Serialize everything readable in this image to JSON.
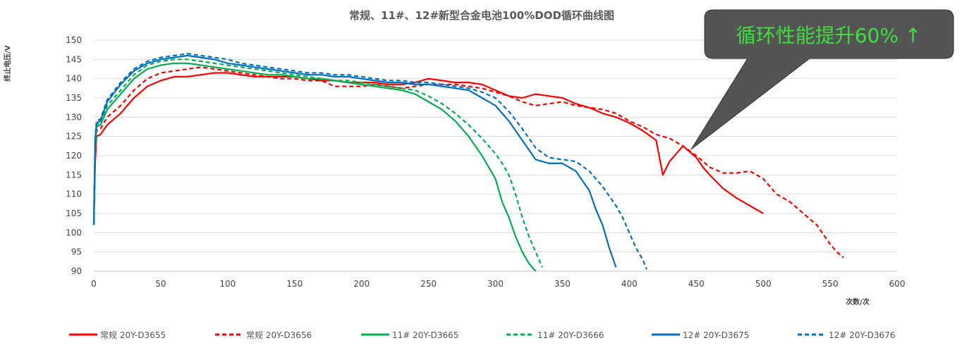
{
  "chart_data": {
    "type": "line",
    "title": "常规、11#、12#新型合金电池100%DOD循环曲线图",
    "xlabel": "次数/次",
    "ylabel": "终止电压/V",
    "xlim": [
      0,
      600
    ],
    "ylim": [
      90,
      150
    ],
    "xticks": [
      0,
      50,
      100,
      150,
      200,
      250,
      300,
      350,
      400,
      450,
      500,
      550,
      600
    ],
    "yticks": [
      90,
      95,
      100,
      105,
      110,
      115,
      120,
      125,
      130,
      135,
      140,
      145,
      150
    ],
    "grid": "horizontal",
    "legend_position": "bottom",
    "annotation": "循环性能提升60% ↑",
    "series": [
      {
        "name": "常规 20Y-D3655",
        "color": "#ff0000",
        "dash": "solid",
        "x": [
          0,
          1,
          2,
          5,
          10,
          20,
          30,
          40,
          50,
          60,
          70,
          80,
          90,
          100,
          110,
          120,
          130,
          140,
          150,
          160,
          170,
          180,
          190,
          200,
          210,
          220,
          230,
          240,
          250,
          260,
          270,
          280,
          290,
          300,
          310,
          320,
          330,
          340,
          350,
          360,
          370,
          380,
          390,
          400,
          410,
          420,
          425,
          430,
          440,
          450,
          455,
          460,
          470,
          480,
          490,
          500
        ],
        "y": [
          102,
          118,
          125,
          125.5,
          128,
          131,
          135,
          138,
          139.5,
          140.5,
          140.5,
          141,
          141.5,
          141.5,
          141,
          140.5,
          140.5,
          140.5,
          140.5,
          140,
          139.5,
          139.5,
          139,
          139,
          139,
          138.5,
          138.5,
          139,
          140,
          139.5,
          139,
          139,
          138.5,
          137,
          135.5,
          135,
          136,
          135.5,
          135,
          133.5,
          132.5,
          131,
          130,
          128.5,
          126.5,
          124,
          115,
          118.5,
          122.5,
          119.5,
          117,
          115,
          111.5,
          109,
          107,
          105
        ]
      },
      {
        "name": "常规 20Y-D3656",
        "color": "#ff0000",
        "dash": "dashed",
        "x": [
          0,
          1,
          2,
          5,
          10,
          20,
          30,
          40,
          50,
          60,
          70,
          80,
          90,
          100,
          110,
          120,
          130,
          140,
          150,
          160,
          170,
          180,
          190,
          200,
          210,
          220,
          230,
          240,
          250,
          260,
          270,
          280,
          290,
          300,
          310,
          320,
          330,
          340,
          350,
          360,
          370,
          380,
          390,
          400,
          410,
          420,
          430,
          440,
          450,
          460,
          470,
          480,
          490,
          500,
          510,
          520,
          530,
          540,
          550,
          555,
          560
        ],
        "y": [
          102,
          120,
          126.5,
          127,
          130,
          133,
          137,
          140,
          141.5,
          142,
          142.5,
          143,
          142.5,
          142,
          141.5,
          141,
          140.5,
          140,
          140,
          139.5,
          139.5,
          138,
          138,
          138,
          138.5,
          138,
          137.5,
          138,
          138.5,
          138.5,
          138.5,
          138,
          137.5,
          136.5,
          135.5,
          134,
          133,
          133.5,
          134,
          133,
          132.5,
          132,
          131,
          129,
          127.5,
          125.5,
          124.5,
          122.5,
          120,
          117,
          115.5,
          115.5,
          116,
          114,
          110,
          108,
          105,
          102,
          97,
          95,
          93.5
        ]
      },
      {
        "name": "11# 20Y-D3665",
        "color": "#00b050",
        "dash": "solid",
        "x": [
          0,
          1,
          2,
          5,
          10,
          20,
          30,
          40,
          50,
          60,
          70,
          80,
          90,
          100,
          110,
          120,
          130,
          140,
          150,
          160,
          170,
          180,
          190,
          200,
          210,
          220,
          230,
          240,
          250,
          260,
          270,
          280,
          290,
          295,
          300,
          305,
          310,
          315,
          320,
          325,
          330
        ],
        "y": [
          102,
          122,
          127.5,
          128,
          132,
          136,
          140,
          142.5,
          143.5,
          144,
          144,
          143.5,
          143,
          142.5,
          142,
          141.5,
          141,
          141,
          140.5,
          140,
          140,
          139.5,
          139,
          138.5,
          138,
          137.5,
          137,
          136,
          134,
          132,
          129,
          125,
          120,
          117,
          114,
          108,
          104,
          99,
          95,
          92,
          90
        ]
      },
      {
        "name": "11# 20Y-D3666",
        "color": "#00b050",
        "dash": "dashed",
        "x": [
          0,
          1,
          2,
          5,
          10,
          20,
          30,
          40,
          50,
          60,
          70,
          80,
          90,
          100,
          110,
          120,
          130,
          140,
          150,
          160,
          170,
          180,
          190,
          200,
          210,
          220,
          230,
          240,
          250,
          260,
          270,
          280,
          290,
          300,
          305,
          310,
          315,
          320,
          325,
          330,
          335
        ],
        "y": [
          102,
          122,
          128,
          128.5,
          133,
          137,
          141,
          143.5,
          144.5,
          145,
          145,
          144.5,
          144,
          143.5,
          143,
          142.5,
          142,
          141.5,
          141,
          140.5,
          140,
          139.5,
          139.5,
          139,
          138.5,
          138,
          137.5,
          137,
          135.5,
          133.5,
          131,
          128,
          124.5,
          120.5,
          118,
          115,
          110,
          104,
          99,
          95,
          91
        ]
      },
      {
        "name": "12# 20Y-D3675",
        "color": "#0070c0",
        "dash": "solid",
        "x": [
          0,
          1,
          2,
          5,
          10,
          20,
          30,
          40,
          50,
          60,
          70,
          80,
          90,
          100,
          110,
          120,
          130,
          140,
          150,
          160,
          170,
          180,
          190,
          200,
          210,
          220,
          230,
          240,
          250,
          260,
          270,
          280,
          290,
          300,
          310,
          320,
          330,
          340,
          350,
          360,
          370,
          375,
          380,
          385,
          390
        ],
        "y": [
          102,
          124,
          128.5,
          129,
          134,
          138.5,
          142,
          144,
          145,
          145.5,
          146,
          145.5,
          145,
          144,
          143.5,
          143,
          142.5,
          142,
          141.5,
          141,
          141,
          140.5,
          140.5,
          140,
          139.5,
          139,
          139,
          138.5,
          138.5,
          138,
          137.5,
          137,
          135,
          133,
          129,
          124,
          119,
          118,
          118,
          116,
          111,
          106,
          102,
          96,
          91
        ]
      },
      {
        "name": "12# 20Y-D3676",
        "color": "#0070c0",
        "dash": "dashed",
        "x": [
          0,
          1,
          2,
          5,
          10,
          20,
          30,
          40,
          50,
          60,
          70,
          80,
          90,
          100,
          110,
          120,
          130,
          140,
          150,
          160,
          170,
          180,
          190,
          200,
          210,
          220,
          230,
          240,
          250,
          260,
          270,
          280,
          290,
          300,
          310,
          320,
          330,
          340,
          350,
          360,
          370,
          380,
          390,
          395,
          400,
          405,
          410,
          413
        ],
        "y": [
          102,
          124,
          129,
          129.5,
          134.5,
          139,
          142.5,
          144.5,
          145.5,
          146,
          146.5,
          146,
          145.5,
          145,
          144,
          143.5,
          143,
          142.5,
          142,
          141.5,
          141.5,
          141,
          141,
          140.5,
          140,
          139.5,
          139.5,
          139,
          139,
          138.5,
          138,
          137.5,
          136.5,
          135,
          131.5,
          127,
          122,
          119.5,
          119,
          118.5,
          116,
          112,
          107,
          104,
          100,
          96,
          93,
          90.5
        ]
      }
    ]
  }
}
